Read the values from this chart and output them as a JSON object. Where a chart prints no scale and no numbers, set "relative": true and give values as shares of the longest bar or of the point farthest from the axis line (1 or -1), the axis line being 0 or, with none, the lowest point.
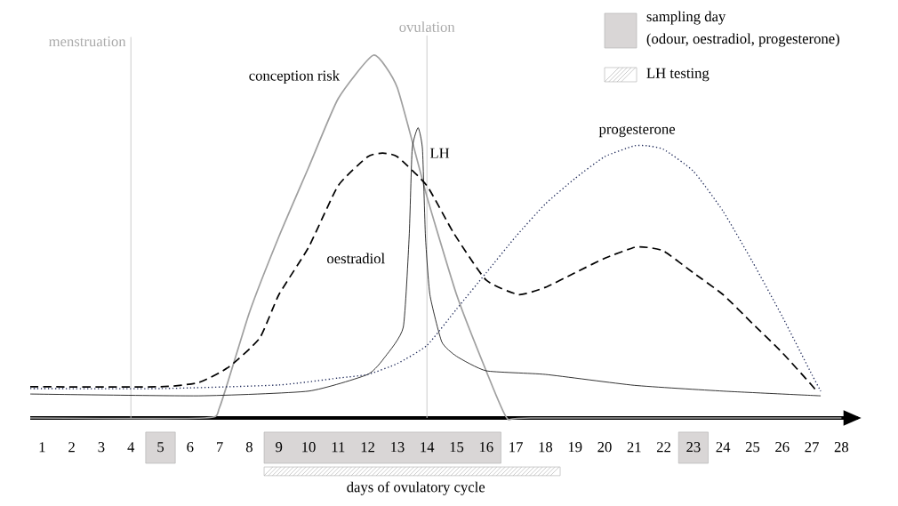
{
  "chart_data": {
    "type": "line",
    "relative": true,
    "xlabel": "days of ovulatory cycle",
    "xlim": [
      0.6,
      28.55
    ],
    "xticks": [
      1,
      2,
      3,
      4,
      5,
      6,
      7,
      8,
      9,
      10,
      11,
      12,
      13,
      14,
      15,
      16,
      17,
      18,
      19,
      20,
      21,
      22,
      23,
      24,
      25,
      26,
      27,
      28
    ],
    "series": [
      {
        "name": "conception risk",
        "color": "#a0a0a0",
        "line_style": "solid",
        "x": [
          0.6,
          6.5,
          7,
          8,
          9,
          10,
          11,
          12.2,
          13,
          14,
          15,
          16,
          16.7,
          17.5,
          28
        ],
        "values": [
          0,
          0,
          0.03,
          0.29,
          0.5,
          0.69,
          0.88,
          1.0,
          0.91,
          0.61,
          0.34,
          0.13,
          0,
          0,
          0
        ]
      },
      {
        "name": "oestradiol",
        "color": "#000000",
        "line_style": "dashed",
        "x": [
          0.6,
          5,
          6.3,
          7.3,
          8.35,
          9,
          10,
          11,
          12,
          12.5,
          13,
          14,
          14.9,
          16,
          17.1,
          18,
          19,
          20,
          21,
          21.45,
          22,
          23,
          24,
          25,
          26,
          27,
          27.2
        ],
        "values": [
          0.086,
          0.086,
          0.098,
          0.14,
          0.22,
          0.34,
          0.47,
          0.64,
          0.72,
          0.73,
          0.72,
          0.64,
          0.51,
          0.38,
          0.34,
          0.36,
          0.4,
          0.44,
          0.47,
          0.47,
          0.46,
          0.4,
          0.34,
          0.26,
          0.18,
          0.09,
          0.07
        ]
      },
      {
        "name": "LH",
        "color": "#000000",
        "line_style": "solid",
        "x": [
          0.6,
          6.3,
          10,
          12,
          12.6,
          13.2,
          13.4,
          13.5,
          13.7,
          13.85,
          13.95,
          14.1,
          14.5,
          15,
          16,
          18,
          21,
          24,
          27.3
        ],
        "values": [
          0.066,
          0.061,
          0.074,
          0.12,
          0.17,
          0.25,
          0.5,
          0.74,
          0.8,
          0.74,
          0.5,
          0.34,
          0.21,
          0.17,
          0.13,
          0.12,
          0.09,
          0.074,
          0.061
        ]
      },
      {
        "name": "progesterone",
        "color": "#1f2a5a",
        "line_style": "dotted",
        "x": [
          0.6,
          5,
          9,
          11,
          12,
          13,
          14,
          15,
          16,
          17,
          18,
          19,
          20,
          21,
          21.45,
          22,
          23,
          24,
          25,
          26,
          27,
          27.3
        ],
        "values": [
          0.081,
          0.081,
          0.091,
          0.11,
          0.12,
          0.15,
          0.2,
          0.3,
          0.4,
          0.5,
          0.59,
          0.66,
          0.72,
          0.75,
          0.75,
          0.74,
          0.68,
          0.57,
          0.43,
          0.28,
          0.12,
          0.074
        ]
      }
    ],
    "ref_lines": [
      {
        "axis": "x",
        "value": 4,
        "label": "menstruation",
        "color": "#c8c8c8"
      },
      {
        "axis": "x",
        "value": 14,
        "label": "ovulation",
        "color": "#c8c8c8"
      }
    ],
    "annotations": [
      "sampling day",
      "(odour, oestradiol, progesterone)",
      "LH testing"
    ]
  }
}
